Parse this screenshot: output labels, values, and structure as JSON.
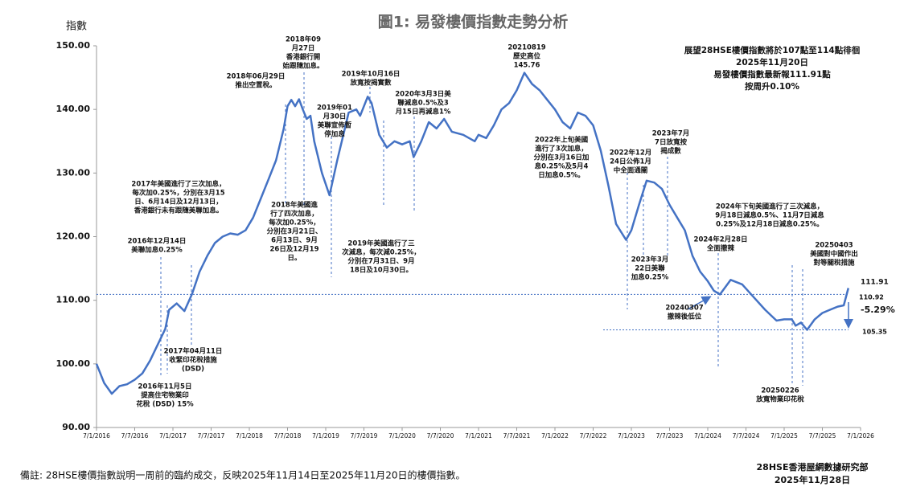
{
  "chart_data": {
    "type": "line",
    "title": "圖1: 易發樓價指數走勢分析",
    "y_label": "指數",
    "color": "#4472c4",
    "grid": false,
    "xlim": [
      2016,
      2026
    ],
    "xticks": [
      {
        "value": 2016.0,
        "label": "7/1/2016"
      },
      {
        "value": 2016.5,
        "label": "7/7/2016"
      },
      {
        "value": 2017.0,
        "label": "7/1/2017"
      },
      {
        "value": 2017.5,
        "label": "7/7/2017"
      },
      {
        "value": 2018.0,
        "label": "7/1/2018"
      },
      {
        "value": 2018.5,
        "label": "7/7/2018"
      },
      {
        "value": 2019.0,
        "label": "7/1/2019"
      },
      {
        "value": 2019.5,
        "label": "7/7/2019"
      },
      {
        "value": 2020.0,
        "label": "7/1/2020"
      },
      {
        "value": 2020.5,
        "label": "7/7/2020"
      },
      {
        "value": 2021.0,
        "label": "7/1/2021"
      },
      {
        "value": 2021.5,
        "label": "7/7/2021"
      },
      {
        "value": 2022.0,
        "label": "7/1/2022"
      },
      {
        "value": 2022.5,
        "label": "7/7/2022"
      },
      {
        "value": 2023.0,
        "label": "7/1/2023"
      },
      {
        "value": 2023.5,
        "label": "7/7/2023"
      },
      {
        "value": 2024.0,
        "label": "7/1/2024"
      },
      {
        "value": 2024.5,
        "label": "7/7/2024"
      },
      {
        "value": 2025.0,
        "label": "7/1/2025"
      },
      {
        "value": 2025.5,
        "label": "7/7/2025"
      },
      {
        "value": 2026.0,
        "label": "7/1/2026"
      }
    ],
    "ylim": [
      90,
      150
    ],
    "yticks": [
      {
        "value": 90,
        "label": "90.00"
      },
      {
        "value": 100,
        "label": "100.00"
      },
      {
        "value": 110,
        "label": "110.00"
      },
      {
        "value": 120,
        "label": "120.00"
      },
      {
        "value": 130,
        "label": "130.00"
      },
      {
        "value": 140,
        "label": "140.00"
      },
      {
        "value": 150,
        "label": "150.00"
      }
    ],
    "x": [
      2016.0,
      2016.1,
      2016.2,
      2016.3,
      2016.4,
      2016.5,
      2016.6,
      2016.7,
      2016.8,
      2016.9,
      2016.95,
      2017.05,
      2017.15,
      2017.25,
      2017.35,
      2017.45,
      2017.55,
      2017.65,
      2017.75,
      2017.85,
      2017.95,
      2018.05,
      2018.15,
      2018.25,
      2018.35,
      2018.45,
      2018.5,
      2018.55,
      2018.6,
      2018.65,
      2018.7,
      2018.75,
      2018.8,
      2018.85,
      2018.95,
      2019.05,
      2019.15,
      2019.25,
      2019.3,
      2019.4,
      2019.45,
      2019.55,
      2019.6,
      2019.7,
      2019.8,
      2019.9,
      2020.0,
      2020.1,
      2020.15,
      2020.25,
      2020.35,
      2020.45,
      2020.55,
      2020.65,
      2020.8,
      2020.95,
      2021.0,
      2021.1,
      2021.2,
      2021.3,
      2021.4,
      2021.5,
      2021.6,
      2021.7,
      2021.8,
      2021.9,
      2022.0,
      2022.1,
      2022.2,
      2022.3,
      2022.4,
      2022.5,
      2022.6,
      2022.7,
      2022.8,
      2022.93,
      2023.0,
      2023.1,
      2023.2,
      2023.3,
      2023.4,
      2023.5,
      2023.6,
      2023.7,
      2023.8,
      2023.9,
      2024.0,
      2024.08,
      2024.16,
      2024.3,
      2024.45,
      2024.6,
      2024.75,
      2024.9,
      2025.0,
      2025.1,
      2025.15,
      2025.22,
      2025.3,
      2025.4,
      2025.5,
      2025.6,
      2025.7,
      2025.78,
      2025.84
    ],
    "values": [
      100,
      97,
      95.3,
      96.5,
      96.8,
      97.5,
      98.5,
      100.5,
      103,
      105.5,
      108.5,
      109.5,
      108.3,
      111,
      114.5,
      117,
      119,
      120,
      120.5,
      120.3,
      121,
      123,
      126,
      129,
      132,
      137,
      140.5,
      141.5,
      140.5,
      141.6,
      140,
      138.5,
      139,
      135,
      130,
      126.5,
      132,
      137,
      139.5,
      140,
      139,
      142,
      141,
      136,
      134,
      135,
      134.5,
      135,
      132.5,
      135,
      138,
      137,
      138.5,
      136.5,
      136,
      135,
      136,
      135.5,
      137.5,
      140,
      141,
      143,
      145.76,
      144,
      143,
      141.5,
      140,
      138,
      137,
      139.5,
      139,
      137.5,
      133.5,
      128,
      122,
      119.5,
      121,
      125,
      128.8,
      128.5,
      127.5,
      125,
      123,
      121,
      117,
      114.5,
      113,
      111.5,
      110.92,
      113.2,
      112.5,
      110.5,
      108.5,
      106.8,
      107,
      107,
      106,
      106.5,
      105.35,
      107,
      108,
      108.5,
      109,
      109.2,
      111.91
    ],
    "reference_lines": [
      {
        "value": 110.92,
        "label": "110.92"
      },
      {
        "value": 105.35,
        "label": "105.35"
      }
    ],
    "end_label": "111.91",
    "change_label": "-5.29%",
    "info_box": [
      "展望28HSE樓價指數將於107點至114點徘徊",
      "2025年11月20日",
      "易發樓價指數最新報111.91點",
      "按周升0.10%"
    ],
    "annotations": [
      {
        "lines": [
          "2016年11月5日",
          "提高住宅物業印",
          "花稅 (DSD) 15%"
        ]
      },
      {
        "lines": [
          "2016年12月14日",
          "美聯加息0.25%"
        ]
      },
      {
        "lines": [
          "2017年04月11日",
          "收緊印花稅措施",
          "(DSD)"
        ]
      },
      {
        "lines": [
          "2017年美國進行了三次加息，",
          "每次加0.25%，分別在3月15",
          "日、6月14日及12月13日，",
          "香港銀行未有跟隨美聯加息。"
        ]
      },
      {
        "lines": [
          "2018年06月29日",
          "推出空置稅。"
        ]
      },
      {
        "lines": [
          "2018年09",
          "月27日",
          "香港銀行開",
          "始跟隨加息。"
        ]
      },
      {
        "lines": [
          "2018年美國進",
          "行了四次加息，",
          "每次加0.25%，",
          "分別在3月21日、",
          "6月13日、9月",
          "26日及12月19",
          "日。"
        ]
      },
      {
        "lines": [
          "2019年01",
          "月30日",
          "美聯宣佈暫",
          "停加息"
        ]
      },
      {
        "lines": [
          "2019年10月16日",
          "放寬按揭實數"
        ]
      },
      {
        "lines": [
          "2019年美國進行了三",
          "次減息，每次減0.25%，",
          "分別在7月31日、9月",
          "18日及10月30日。"
        ]
      },
      {
        "lines": [
          "2020年3月3日美",
          "聯減息0.5%及3",
          "月15日再減息1%"
        ]
      },
      {
        "lines": [
          "20210819",
          "歷史高位",
          "145.76"
        ]
      },
      {
        "lines": [
          "2022年上旬美國",
          "進行了3次加息，",
          "分別在3月16日加",
          "息0.25%及5月4",
          "日加息0.5%。"
        ]
      },
      {
        "lines": [
          "2022年12月",
          "24日公佈1月",
          "中全面通關"
        ]
      },
      {
        "lines": [
          "2023年7月",
          "7日放寬按",
          "揭成數"
        ]
      },
      {
        "lines": [
          "2023年3月",
          "22日美聯",
          "加息0.25%"
        ]
      },
      {
        "lines": [
          "2024年下旬美國進行了三次減息，",
          "9月18日減息0.5%、11月7日減息",
          "0.25%及12月18日減息0.25%。"
        ]
      },
      {
        "lines": [
          "2024年2月28日",
          "全面撤辣"
        ]
      },
      {
        "lines": [
          "20240307",
          "撤辣後低位"
        ]
      },
      {
        "lines": [
          "20250403",
          "美國對中國作出",
          "對等關稅措施"
        ]
      },
      {
        "lines": [
          "20250226",
          "放寬物業印花稅"
        ]
      }
    ],
    "footnote": "備註: 28HSE樓價指數說明一周前的臨約成交，反映2025年11月14日至2025年11月20日的樓價指數。",
    "source": [
      "28HSE香港屋網數據研究部",
      "2025年11月28日"
    ]
  }
}
